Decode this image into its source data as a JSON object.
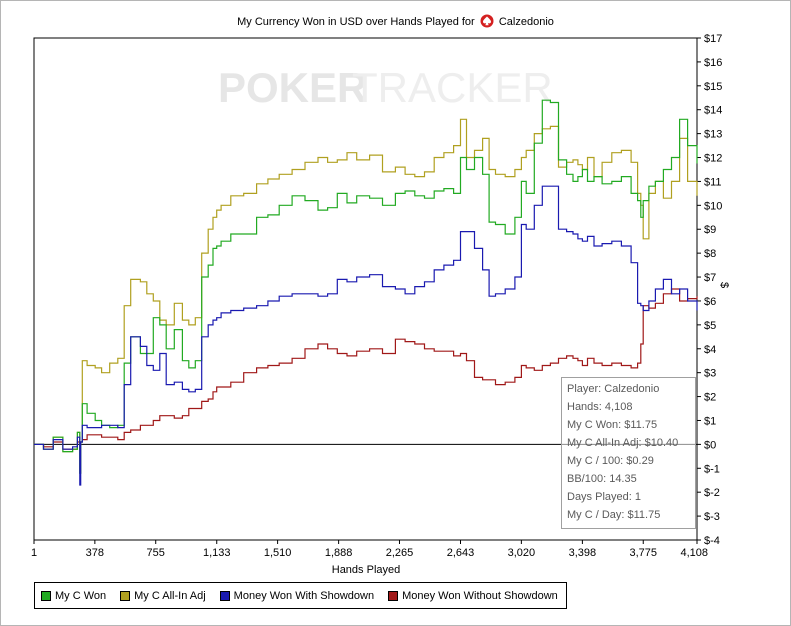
{
  "chart_data": {
    "type": "line",
    "title_prefix": "My Currency Won in USD over Hands Played for",
    "player_name": "Calzedonio",
    "watermark": {
      "left": "POKER",
      "right": "TRACKER"
    },
    "xlabel": "Hands Played",
    "ylabel": "$",
    "xlim": [
      1,
      4108
    ],
    "ylim": [
      -4,
      17
    ],
    "x_ticks": [
      1,
      378,
      755,
      1133,
      1510,
      1888,
      2265,
      2643,
      3020,
      3398,
      3775,
      4108
    ],
    "x_tick_labels": [
      "1",
      "378",
      "755",
      "1,133",
      "1,510",
      "1,888",
      "2,265",
      "2,643",
      "3,020",
      "3,398",
      "3,775",
      "4,108"
    ],
    "y_ticks": [
      -4,
      -3,
      -2,
      -1,
      0,
      1,
      2,
      3,
      4,
      5,
      6,
      7,
      8,
      9,
      10,
      11,
      12,
      13,
      14,
      15,
      16,
      17
    ],
    "y_tick_labels": [
      "$-4",
      "$-3",
      "$-2",
      "$-1",
      "$0",
      "$1",
      "$2",
      "$3",
      "$4",
      "$5",
      "$6",
      "$7",
      "$8",
      "$9",
      "$10",
      "$11",
      "$12",
      "$13",
      "$14",
      "$15",
      "$16",
      "$17"
    ],
    "zero_line": true,
    "series": [
      {
        "name": "My C Won",
        "color": "#22aa22",
        "x": [
          1,
          60,
          120,
          180,
          240,
          270,
          285,
          290,
          300,
          330,
          380,
          420,
          470,
          520,
          560,
          600,
          660,
          700,
          740,
          780,
          820,
          870,
          920,
          960,
          1000,
          1040,
          1080,
          1110,
          1133,
          1160,
          1220,
          1300,
          1380,
          1450,
          1520,
          1600,
          1680,
          1760,
          1820,
          1880,
          1940,
          2000,
          2080,
          2160,
          2240,
          2300,
          2360,
          2420,
          2480,
          2540,
          2600,
          2643,
          2680,
          2730,
          2780,
          2820,
          2860,
          2920,
          2980,
          3020,
          3050,
          3100,
          3150,
          3200,
          3250,
          3300,
          3340,
          3370,
          3398,
          3430,
          3470,
          3520,
          3580,
          3640,
          3700,
          3740,
          3760,
          3775,
          3810,
          3850,
          3900,
          3950,
          4000,
          4050,
          4108
        ],
        "y": [
          0,
          -0.2,
          0.3,
          -0.3,
          -0.2,
          0.5,
          -1.2,
          0.1,
          1.7,
          1.3,
          1.0,
          0.8,
          0.7,
          0.8,
          3.4,
          4.5,
          3.8,
          3.8,
          5.3,
          5.0,
          4.0,
          4.8,
          3.5,
          3.2,
          3.5,
          7.0,
          7.5,
          8.2,
          8.3,
          8.5,
          8.8,
          8.8,
          9.5,
          9.6,
          10.0,
          10.4,
          10.2,
          9.8,
          9.9,
          10.5,
          10.1,
          10.4,
          10.3,
          10.0,
          10.5,
          10.6,
          10.4,
          10.3,
          10.6,
          10.7,
          10.5,
          12.0,
          11.5,
          12.0,
          11.3,
          9.3,
          9.2,
          8.8,
          9.5,
          11.0,
          10.5,
          12.6,
          14.4,
          14.3,
          11.9,
          11.3,
          11.0,
          11.2,
          11.5,
          11.0,
          11.2,
          10.9,
          11.0,
          11.2,
          10.5,
          10.2,
          9.5,
          10.2,
          10.8,
          11.0,
          11.5,
          12.0,
          13.6,
          12.5,
          11.75
        ]
      },
      {
        "name": "My C All-In Adj",
        "color": "#b0a020",
        "x": [
          1,
          60,
          120,
          180,
          240,
          270,
          285,
          290,
          300,
          330,
          380,
          420,
          470,
          520,
          560,
          600,
          660,
          700,
          740,
          780,
          820,
          870,
          920,
          960,
          1000,
          1040,
          1080,
          1110,
          1133,
          1160,
          1220,
          1300,
          1380,
          1450,
          1520,
          1600,
          1680,
          1760,
          1820,
          1880,
          1940,
          2000,
          2080,
          2160,
          2240,
          2300,
          2360,
          2420,
          2480,
          2540,
          2600,
          2643,
          2680,
          2730,
          2780,
          2820,
          2860,
          2920,
          2980,
          3020,
          3050,
          3100,
          3150,
          3200,
          3250,
          3300,
          3340,
          3370,
          3398,
          3430,
          3470,
          3520,
          3580,
          3640,
          3700,
          3740,
          3760,
          3775,
          3810,
          3850,
          3900,
          3950,
          4000,
          4050,
          4108
        ],
        "y": [
          0,
          -0.2,
          0.3,
          -0.3,
          -0.2,
          0.5,
          -1.2,
          0.1,
          3.5,
          3.3,
          3.2,
          3.0,
          3.4,
          3.6,
          5.8,
          6.9,
          6.8,
          6.3,
          6.0,
          5.2,
          5.0,
          5.9,
          5.2,
          5.0,
          5.3,
          8.0,
          9.0,
          9.5,
          9.8,
          10.0,
          10.4,
          10.5,
          10.9,
          11.1,
          11.3,
          11.5,
          11.8,
          12.0,
          11.8,
          11.9,
          12.2,
          11.9,
          12.1,
          11.4,
          11.6,
          11.3,
          11.2,
          11.4,
          12.0,
          12.2,
          12.5,
          13.6,
          12.0,
          12.3,
          12.8,
          11.5,
          11.3,
          11.2,
          11.5,
          12.0,
          12.3,
          13.0,
          13.2,
          13.3,
          11.6,
          11.8,
          11.9,
          11.7,
          11.5,
          12.0,
          11.2,
          11.8,
          12.2,
          12.3,
          11.8,
          10.5,
          10.0,
          8.6,
          10.5,
          11.0,
          10.3,
          11.0,
          12.8,
          11.0,
          10.4
        ]
      },
      {
        "name": "Money Won With Showdown",
        "color": "#1a1ab0",
        "x": [
          1,
          60,
          120,
          180,
          240,
          270,
          285,
          290,
          300,
          330,
          380,
          420,
          470,
          520,
          560,
          600,
          660,
          700,
          740,
          780,
          820,
          870,
          920,
          960,
          1000,
          1040,
          1080,
          1110,
          1133,
          1160,
          1220,
          1300,
          1380,
          1450,
          1520,
          1600,
          1680,
          1760,
          1820,
          1880,
          1940,
          2000,
          2080,
          2160,
          2240,
          2300,
          2360,
          2420,
          2480,
          2540,
          2600,
          2643,
          2680,
          2730,
          2780,
          2820,
          2860,
          2920,
          2980,
          3020,
          3050,
          3100,
          3150,
          3200,
          3250,
          3300,
          3340,
          3370,
          3398,
          3430,
          3470,
          3520,
          3580,
          3640,
          3700,
          3740,
          3760,
          3775,
          3810,
          3850,
          3900,
          3950,
          4000,
          4050,
          4108
        ],
        "y": [
          0,
          -0.2,
          0.2,
          -0.2,
          -0.1,
          0.3,
          -1.7,
          0.1,
          0.8,
          0.7,
          0.7,
          0.8,
          0.8,
          0.7,
          2.5,
          4.5,
          4.1,
          3.3,
          3.1,
          3.8,
          2.5,
          2.6,
          2.3,
          2.2,
          2.3,
          4.5,
          5.0,
          5.2,
          5.3,
          5.5,
          5.6,
          5.7,
          5.8,
          6.0,
          6.2,
          6.3,
          6.3,
          6.2,
          6.3,
          6.9,
          6.8,
          7.0,
          7.1,
          6.6,
          6.5,
          6.3,
          6.6,
          6.8,
          7.3,
          7.5,
          7.7,
          8.9,
          8.9,
          8.2,
          7.3,
          6.2,
          6.3,
          6.5,
          7.0,
          9.2,
          9.0,
          10.0,
          10.8,
          10.8,
          9.0,
          8.9,
          8.8,
          8.6,
          8.5,
          8.7,
          8.3,
          8.4,
          8.5,
          8.3,
          7.6,
          5.9,
          5.8,
          5.6,
          6.0,
          6.5,
          6.9,
          6.3,
          6.5,
          6.0,
          5.6
        ]
      },
      {
        "name": "Money Won Without Showdown",
        "color": "#a01818",
        "x": [
          1,
          60,
          120,
          180,
          240,
          270,
          285,
          290,
          300,
          330,
          380,
          420,
          470,
          520,
          560,
          600,
          660,
          700,
          740,
          780,
          820,
          870,
          920,
          960,
          1000,
          1040,
          1080,
          1110,
          1133,
          1160,
          1220,
          1300,
          1380,
          1450,
          1520,
          1600,
          1680,
          1760,
          1820,
          1880,
          1940,
          2000,
          2080,
          2160,
          2240,
          2300,
          2360,
          2420,
          2480,
          2540,
          2600,
          2643,
          2680,
          2730,
          2780,
          2820,
          2860,
          2920,
          2980,
          3020,
          3050,
          3100,
          3150,
          3200,
          3250,
          3300,
          3340,
          3370,
          3398,
          3430,
          3470,
          3520,
          3580,
          3640,
          3700,
          3740,
          3760,
          3775,
          3810,
          3850,
          3900,
          3950,
          4000,
          4050,
          4108
        ],
        "y": [
          0,
          -0.1,
          0.1,
          -0.2,
          -0.2,
          0.1,
          0.1,
          0.1,
          0.2,
          0.4,
          0.4,
          0.3,
          0.3,
          0.2,
          0.5,
          0.6,
          0.8,
          0.8,
          1.0,
          1.2,
          1.2,
          1.1,
          1.2,
          1.5,
          1.5,
          1.8,
          1.9,
          2.2,
          2.4,
          2.4,
          2.6,
          3.0,
          3.2,
          3.3,
          3.4,
          3.6,
          4.0,
          4.2,
          4.0,
          3.8,
          3.7,
          3.9,
          4.0,
          3.8,
          4.4,
          4.3,
          4.2,
          4.0,
          3.9,
          3.9,
          3.7,
          3.8,
          3.5,
          2.8,
          2.7,
          2.7,
          2.5,
          2.6,
          2.8,
          3.3,
          3.2,
          3.1,
          3.3,
          3.4,
          3.6,
          3.7,
          3.6,
          3.5,
          3.3,
          3.6,
          3.4,
          3.3,
          3.4,
          3.3,
          3.2,
          3.4,
          4.2,
          5.8,
          5.7,
          5.9,
          6.3,
          6.5,
          6.0,
          6.1,
          6.2
        ]
      }
    ]
  },
  "tooltip": {
    "player": "Player: Calzedonio",
    "hands": "Hands: 4,108",
    "won": "My C Won: $11.75",
    "allin": "My C All-In Adj: $10.40",
    "per100": "My C / 100: $0.29",
    "bb100": "BB/100: 14.35",
    "days": "Days Played: 1",
    "perday": "My C / Day: $11.75"
  },
  "legend": [
    {
      "label": "My C Won",
      "color": "#22aa22"
    },
    {
      "label": "My C All-In Adj",
      "color": "#b0a020"
    },
    {
      "label": "Money Won With Showdown",
      "color": "#1a1ab0"
    },
    {
      "label": "Money Won Without Showdown",
      "color": "#a01818"
    }
  ]
}
